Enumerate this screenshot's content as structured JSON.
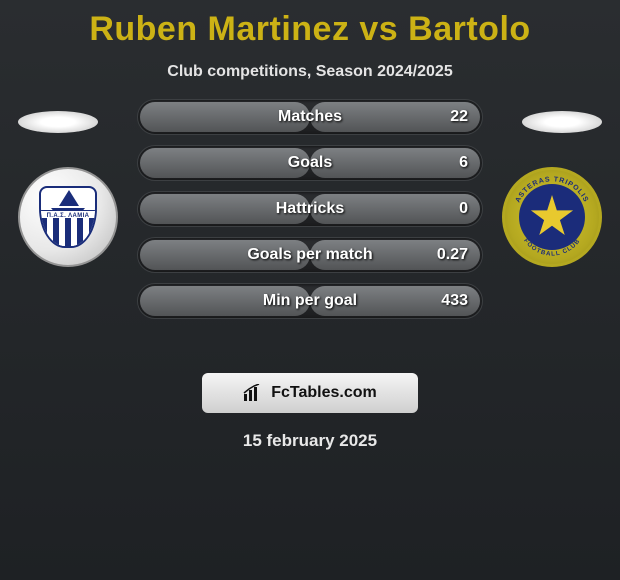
{
  "title_color": "#ccb215",
  "title": "Ruben Martinez vs Bartolo",
  "subtitle": "Club competitions, Season 2024/2025",
  "left_badge_band": "Π.Α.Σ.  ΛΑΜΙΑ",
  "stats": [
    {
      "label": "Matches",
      "right_value": "22",
      "left_fill_pct": 50,
      "right_fill_pct": 50
    },
    {
      "label": "Goals",
      "right_value": "6",
      "left_fill_pct": 50,
      "right_fill_pct": 50
    },
    {
      "label": "Hattricks",
      "right_value": "0",
      "left_fill_pct": 50,
      "right_fill_pct": 50
    },
    {
      "label": "Goals per match",
      "right_value": "0.27",
      "left_fill_pct": 50,
      "right_fill_pct": 50
    },
    {
      "label": "Min per goal",
      "right_value": "433",
      "left_fill_pct": 50,
      "right_fill_pct": 50
    }
  ],
  "branding_text": "FcTables.com",
  "date": "15 february 2025",
  "bar_colors": {
    "track_bg_top": "#2d2f32",
    "track_bg_bottom": "#1c1d1f",
    "fill_top": "#7d8083",
    "fill_bottom": "#525456"
  }
}
